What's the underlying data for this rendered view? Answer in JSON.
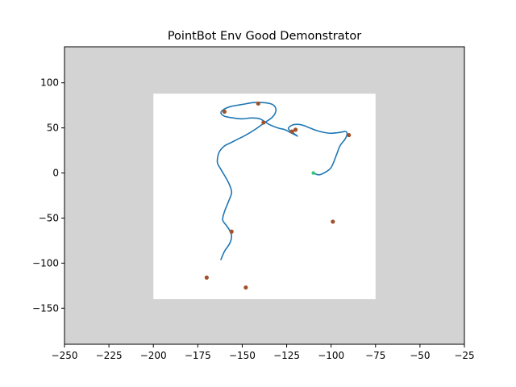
{
  "chart_data": {
    "type": "line",
    "title": "PointBot Env Good Demonstrator",
    "xlabel": "",
    "ylabel": "",
    "xlim": [
      -250,
      -25
    ],
    "ylim": [
      -190,
      140
    ],
    "xticks": [
      -250,
      -225,
      -200,
      -175,
      -150,
      -125,
      -100,
      -75,
      -50,
      -25
    ],
    "yticks": [
      -150,
      -100,
      -50,
      0,
      50,
      100
    ],
    "grid": false,
    "legend": "none",
    "colors": {
      "background_region": "#d3d3d3",
      "free_region": "#ffffff",
      "trajectory": "#1f77b4",
      "obstacle_points": "#a0522d",
      "start_point": "#2ecc71"
    },
    "free_region": {
      "x": [
        -200,
        -75
      ],
      "y": [
        -140,
        88
      ]
    },
    "trajectory": {
      "x": [
        -110,
        -107,
        -104,
        -100,
        -97,
        -95,
        -92,
        -91,
        -92,
        -95,
        -100,
        -104,
        -108,
        -112,
        -116,
        -119,
        -122,
        -124,
        -121,
        -119,
        -120,
        -123,
        -126,
        -130,
        -135,
        -140,
        -145,
        -150,
        -155,
        -160,
        -162,
        -160,
        -156,
        -150,
        -144,
        -138,
        -133,
        -131,
        -133,
        -138,
        -143,
        -148,
        -153,
        -157,
        -160,
        -163,
        -164,
        -162,
        -159,
        -157,
        -156,
        -158,
        -160,
        -161,
        -159,
        -157,
        -156,
        -157,
        -160,
        -162
      ],
      "y": [
        0,
        -2,
        0,
        6,
        20,
        30,
        38,
        44,
        46,
        45,
        44,
        45,
        47,
        50,
        53,
        54,
        53,
        49,
        44,
        41,
        42,
        45,
        48,
        50,
        54,
        60,
        61,
        60,
        61,
        63,
        67,
        71,
        74,
        76,
        78,
        78,
        76,
        70,
        62,
        55,
        48,
        42,
        37,
        33,
        30,
        23,
        12,
        4,
        -6,
        -14,
        -22,
        -33,
        -43,
        -52,
        -58,
        -64,
        -70,
        -78,
        -87,
        -96
      ]
    },
    "start_point": {
      "x": -110,
      "y": 0
    },
    "obstacles": {
      "x": [
        -141,
        -160,
        -138,
        -122,
        -120,
        -90,
        -99,
        -156,
        -170,
        -148
      ],
      "y": [
        77,
        68,
        56,
        46,
        48,
        42,
        -54,
        -65,
        -116,
        -127
      ]
    }
  }
}
